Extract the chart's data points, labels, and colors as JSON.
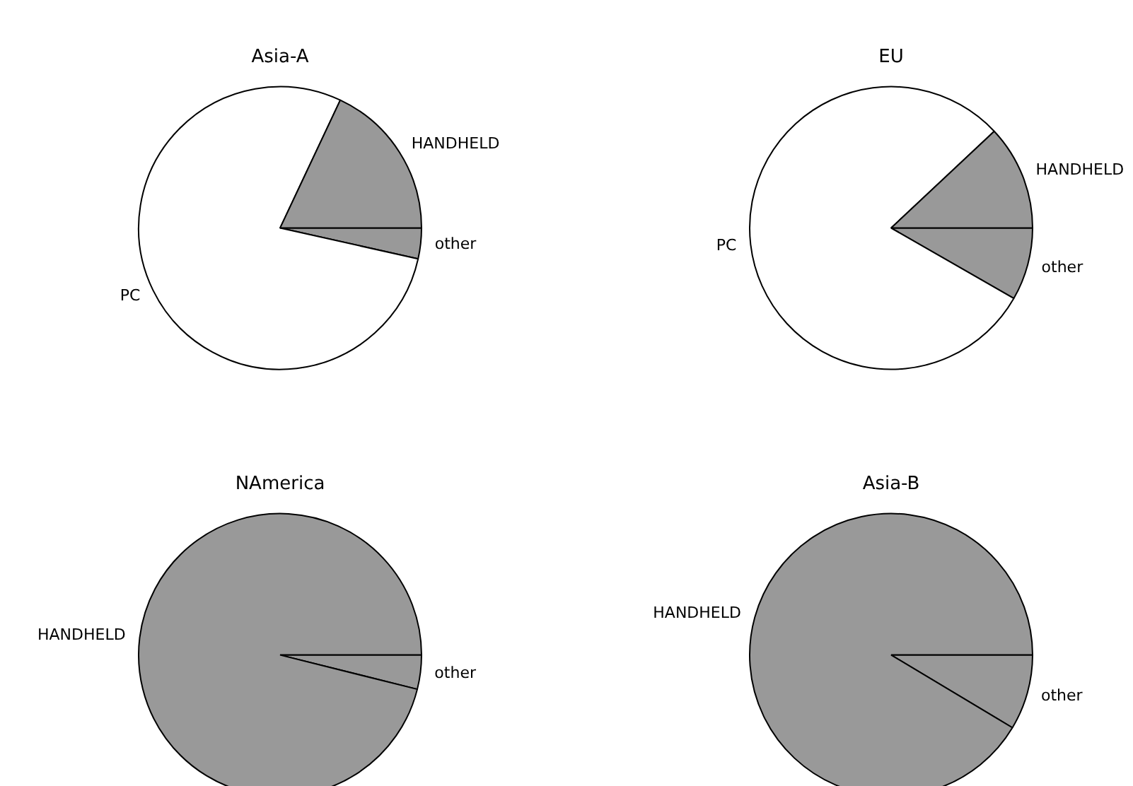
{
  "chart_data": [
    {
      "type": "pie",
      "title": "Asia-A",
      "categories": [
        "other",
        "PC",
        "HANDHELD"
      ],
      "values": [
        3.5,
        78.5,
        18
      ],
      "colors": [
        "#999999",
        "#ffffff",
        "#999999"
      ]
    },
    {
      "type": "pie",
      "title": "EU",
      "categories": [
        "other",
        "PC",
        "HANDHELD"
      ],
      "values": [
        8.3,
        79.7,
        12
      ],
      "colors": [
        "#999999",
        "#ffffff",
        "#999999"
      ]
    },
    {
      "type": "pie",
      "title": "NAmerica",
      "categories": [
        "other",
        "HANDHELD"
      ],
      "values": [
        3.9,
        96.1
      ],
      "colors": [
        "#999999",
        "#999999"
      ]
    },
    {
      "type": "pie",
      "title": "Asia-B",
      "categories": [
        "other",
        "HANDHELD"
      ],
      "values": [
        8.6,
        91.4
      ],
      "colors": [
        "#999999",
        "#999999"
      ]
    }
  ]
}
